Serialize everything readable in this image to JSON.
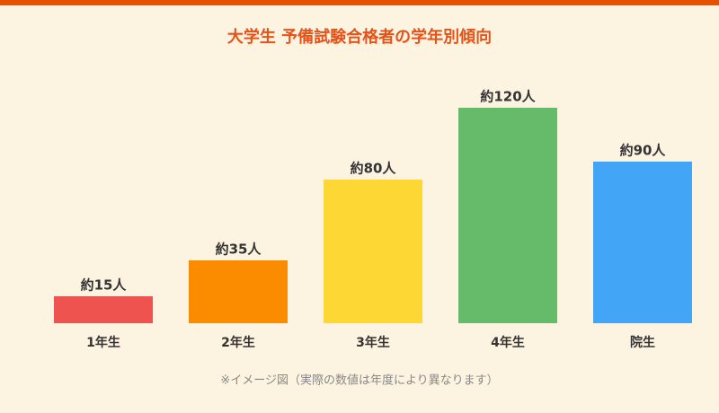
{
  "chart_data": {
    "type": "bar",
    "title": "大学生 予備試験合格者の学年別傾向",
    "categories": [
      "1年生",
      "2年生",
      "3年生",
      "4年生",
      "院生"
    ],
    "values": [
      15,
      35,
      80,
      120,
      90
    ],
    "value_labels": [
      "約15人",
      "約35人",
      "約80人",
      "約120人",
      "約90人"
    ],
    "colors": [
      "#ef5350",
      "#fb8c00",
      "#fdd835",
      "#66bb6a",
      "#42a5f5"
    ],
    "note": "※イメージ図（実際の数値は年度により異なります）"
  }
}
